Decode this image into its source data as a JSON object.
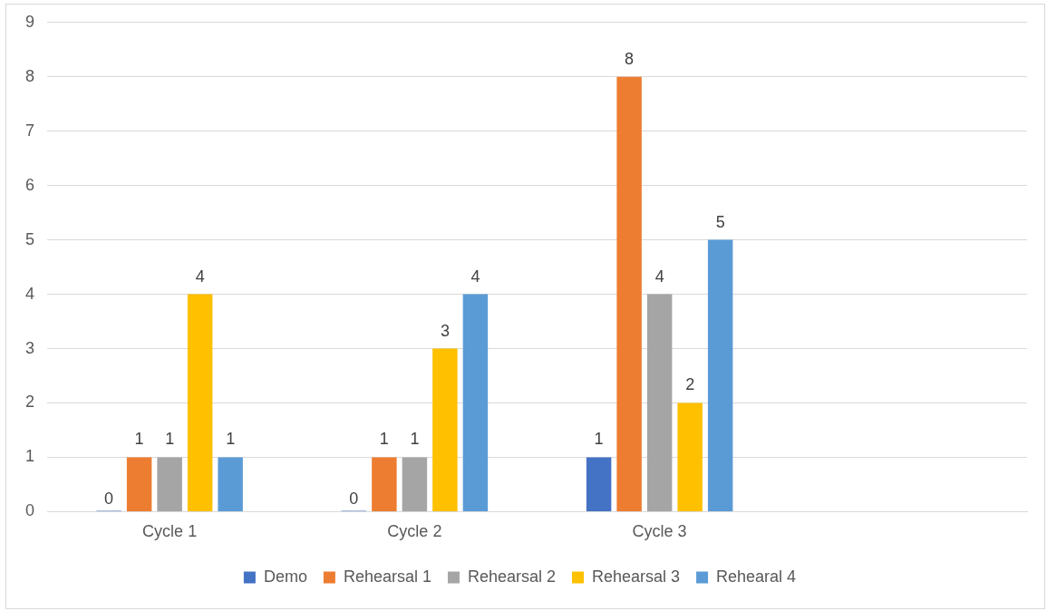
{
  "chart_data": {
    "type": "bar",
    "categories": [
      "Cycle 1",
      "Cycle 2",
      "Cycle 3",
      null
    ],
    "series": [
      {
        "name": "Demo",
        "color": "#4472c4",
        "values": [
          0,
          0,
          1,
          null
        ]
      },
      {
        "name": "Rehearsal 1",
        "color": "#ed7d31",
        "values": [
          1,
          1,
          8,
          null
        ]
      },
      {
        "name": "Rehearsal 2",
        "color": "#a5a5a5",
        "values": [
          1,
          1,
          4,
          null
        ]
      },
      {
        "name": "Rehearsal 3",
        "color": "#ffc000",
        "values": [
          4,
          3,
          2,
          null
        ]
      },
      {
        "name": "Rehearal 4",
        "color": "#5b9bd5",
        "values": [
          1,
          4,
          5,
          null
        ]
      }
    ],
    "ylim": [
      0,
      9
    ],
    "yticks": [
      0,
      1,
      2,
      3,
      4,
      5,
      6,
      7,
      8,
      9
    ],
    "grid": "y",
    "legend": "bottom",
    "data_labels": true
  }
}
